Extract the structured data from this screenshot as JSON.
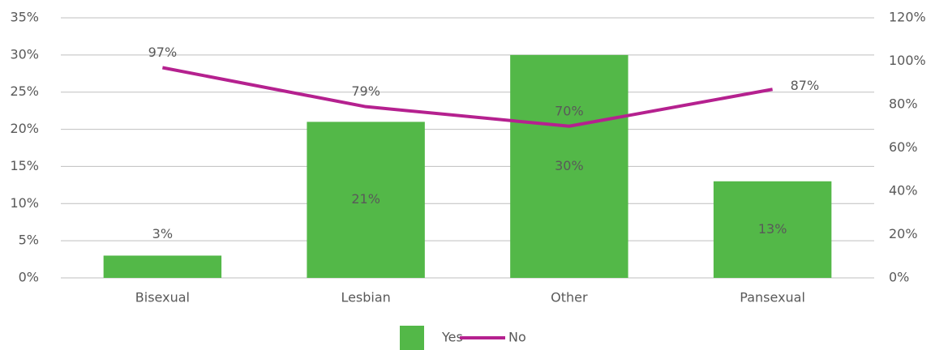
{
  "chart_data": {
    "type": "combo",
    "categories": [
      "Bisexual",
      "Lesbian",
      "Other",
      "Pansexual"
    ],
    "series": [
      {
        "name": "Yes",
        "type": "bar",
        "axis": "y",
        "color": "#53b848",
        "values": [
          3,
          21,
          30,
          13
        ],
        "value_labels": [
          "3%",
          "21%",
          "30%",
          "13%"
        ]
      },
      {
        "name": "No",
        "type": "line",
        "axis": "y2",
        "color": "#b5218f",
        "values": [
          97,
          79,
          70,
          87
        ],
        "value_labels": [
          "97%",
          "79%",
          "70%",
          "87%"
        ]
      }
    ],
    "ylim": [
      0,
      35
    ],
    "yticks": [
      {
        "value": 0,
        "label": "0%"
      },
      {
        "value": 5,
        "label": "5%"
      },
      {
        "value": 10,
        "label": "10%"
      },
      {
        "value": 15,
        "label": "15%"
      },
      {
        "value": 20,
        "label": "20%"
      },
      {
        "value": 25,
        "label": "25%"
      },
      {
        "value": 30,
        "label": "30%"
      },
      {
        "value": 35,
        "label": "35%"
      }
    ],
    "y2lim": [
      0,
      120
    ],
    "y2ticks": [
      {
        "value": 0,
        "label": "0%"
      },
      {
        "value": 20,
        "label": "20%"
      },
      {
        "value": 40,
        "label": "40%"
      },
      {
        "value": 60,
        "label": "60%"
      },
      {
        "value": 80,
        "label": "80%"
      },
      {
        "value": 100,
        "label": "100%"
      },
      {
        "value": 120,
        "label": "120%"
      }
    ],
    "grid": true,
    "legend": "bottom"
  }
}
